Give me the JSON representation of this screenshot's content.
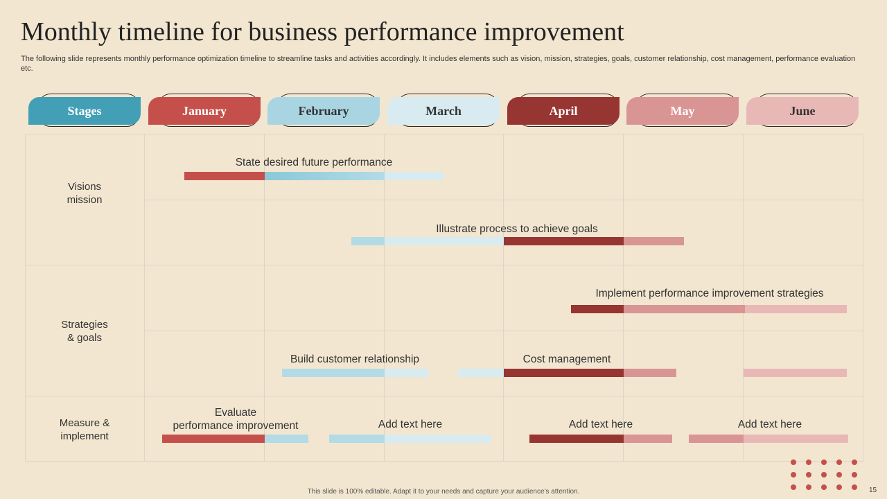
{
  "title": "Monthly timeline for business performance improvement",
  "subtitle": "The following slide represents monthly performance optimization timeline to streamline tasks and activities accordingly. It includes elements such as vision, mission, strategies, goals, customer relationship, cost management, performance evaluation etc.",
  "headers": [
    {
      "label": "Stages",
      "bg": "#429fb6",
      "fg": "#ffffff"
    },
    {
      "label": "January",
      "bg": "#c5504b",
      "fg": "#ffffff"
    },
    {
      "label": "February",
      "bg": "#a9d5e2",
      "fg": "#333333"
    },
    {
      "label": "March",
      "bg": "#d7ebf1",
      "fg": "#333333"
    },
    {
      "label": "April",
      "bg": "#973533",
      "fg": "#ffffff"
    },
    {
      "label": "May",
      "bg": "#d99593",
      "fg": "#ffffff"
    },
    {
      "label": "June",
      "bg": "#e8b8b6",
      "fg": "#333333"
    }
  ],
  "stages": {
    "vision": "Visions\nmission",
    "strategies": "Strategies\n& goals",
    "measure": "Measure &\nimplement"
  },
  "tasks": {
    "t1": "State desired future  performance",
    "t2": "Illustrate  process to achieve goals",
    "t3": "Implement  performance improvement  strategies",
    "t4": "Build customer relationship",
    "t5": "Cost management",
    "t6a": "Evaluate",
    "t6b": "performance improvement",
    "t7": "Add text here",
    "t8": "Add text here",
    "t9": "Add text here"
  },
  "colors": {
    "red": "#c5504b",
    "darkred": "#973533",
    "pink": "#d99593",
    "lightpink": "#e8b8b6",
    "blue": "#8ac8d8",
    "lightblue": "#b3dbe6",
    "paleblue": "#d7ebf1"
  },
  "footer": "This slide is 100% editable.  Adapt it to your needs and capture your audience's attention.",
  "page_number": "15"
}
